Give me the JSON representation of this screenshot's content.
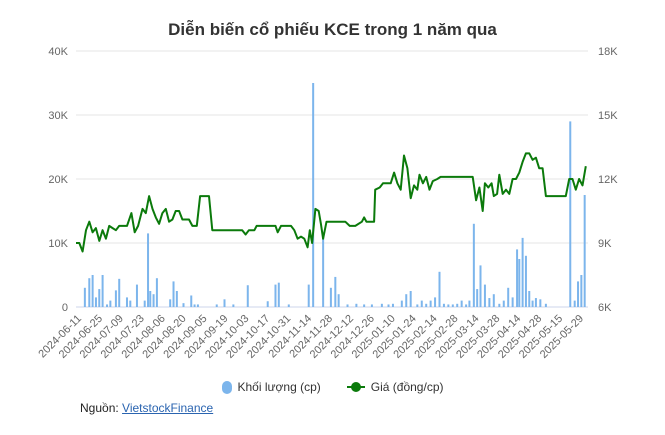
{
  "chart_data": {
    "type": "bar+line",
    "title": "Diễn biến cổ phiếu KCE trong 1 năm qua",
    "y_left_ticks": [
      "0",
      "10K",
      "20K",
      "30K",
      "40K"
    ],
    "y_left_range": [
      0,
      40000
    ],
    "y_right_ticks": [
      "6K",
      "9K",
      "12K",
      "15K",
      "18K"
    ],
    "y_right_range": [
      6000,
      18000
    ],
    "x_tick_labels": [
      "2024-06-11",
      "2024-06-25",
      "2024-07-09",
      "2024-07-23",
      "2024-08-06",
      "2024-08-20",
      "2024-09-05",
      "2024-09-19",
      "2024-10-03",
      "2024-10-17",
      "2024-10-31",
      "2024-11-14",
      "2024-11-28",
      "2024-12-12",
      "2024-12-26",
      "2025-01-10",
      "2025-01-24",
      "2025-02-14",
      "2025-02-28",
      "2025-03-14",
      "2025-03-28",
      "2025-04-14",
      "2025-04-28",
      "2025-05-15",
      "2025-05-29"
    ],
    "grid": true,
    "legend_position": "bottom",
    "colors": {
      "volume": "#7cb5ec",
      "price": "#0b7a0b",
      "grid": "#e6e6e6",
      "axis": "#ccd6eb"
    },
    "series": [
      {
        "name": "Khối lượng (cp)",
        "axis": "left",
        "kind": "bar",
        "points": [
          {
            "x": 0.8,
            "y": 3000
          },
          {
            "x": 1.2,
            "y": 4500
          },
          {
            "x": 1.5,
            "y": 5000
          },
          {
            "x": 1.8,
            "y": 1500
          },
          {
            "x": 2.1,
            "y": 2800
          },
          {
            "x": 2.4,
            "y": 5000
          },
          {
            "x": 2.8,
            "y": 400
          },
          {
            "x": 3.1,
            "y": 1000
          },
          {
            "x": 3.6,
            "y": 2600
          },
          {
            "x": 3.9,
            "y": 4400
          },
          {
            "x": 4.6,
            "y": 1500
          },
          {
            "x": 4.9,
            "y": 1000
          },
          {
            "x": 5.5,
            "y": 3500
          },
          {
            "x": 6.2,
            "y": 1000
          },
          {
            "x": 6.5,
            "y": 11500
          },
          {
            "x": 6.7,
            "y": 2500
          },
          {
            "x": 7.0,
            "y": 2000
          },
          {
            "x": 7.3,
            "y": 4500
          },
          {
            "x": 8.5,
            "y": 1200
          },
          {
            "x": 8.8,
            "y": 4000
          },
          {
            "x": 9.1,
            "y": 2500
          },
          {
            "x": 9.7,
            "y": 600
          },
          {
            "x": 10.4,
            "y": 1800
          },
          {
            "x": 10.7,
            "y": 400
          },
          {
            "x": 11.0,
            "y": 400
          },
          {
            "x": 12.7,
            "y": 400
          },
          {
            "x": 13.4,
            "y": 1200
          },
          {
            "x": 14.2,
            "y": 400
          },
          {
            "x": 15.5,
            "y": 3400
          },
          {
            "x": 17.3,
            "y": 900
          },
          {
            "x": 18.0,
            "y": 3500
          },
          {
            "x": 18.3,
            "y": 3800
          },
          {
            "x": 19.2,
            "y": 400
          },
          {
            "x": 21.0,
            "y": 3500
          },
          {
            "x": 21.4,
            "y": 35000
          },
          {
            "x": 22.3,
            "y": 11000
          },
          {
            "x": 23.0,
            "y": 3000
          },
          {
            "x": 23.4,
            "y": 4700
          },
          {
            "x": 23.7,
            "y": 2000
          },
          {
            "x": 24.5,
            "y": 400
          },
          {
            "x": 25.3,
            "y": 500
          },
          {
            "x": 26.0,
            "y": 400
          },
          {
            "x": 26.7,
            "y": 400
          },
          {
            "x": 27.6,
            "y": 500
          },
          {
            "x": 28.2,
            "y": 400
          },
          {
            "x": 28.6,
            "y": 500
          },
          {
            "x": 29.4,
            "y": 1000
          },
          {
            "x": 29.8,
            "y": 2000
          },
          {
            "x": 30.2,
            "y": 2500
          },
          {
            "x": 30.8,
            "y": 400
          },
          {
            "x": 31.2,
            "y": 1000
          },
          {
            "x": 31.6,
            "y": 500
          },
          {
            "x": 32.0,
            "y": 1000
          },
          {
            "x": 32.4,
            "y": 1500
          },
          {
            "x": 32.8,
            "y": 5500
          },
          {
            "x": 33.2,
            "y": 500
          },
          {
            "x": 33.6,
            "y": 400
          },
          {
            "x": 34.0,
            "y": 400
          },
          {
            "x": 34.4,
            "y": 500
          },
          {
            "x": 34.8,
            "y": 1000
          },
          {
            "x": 35.2,
            "y": 400
          },
          {
            "x": 35.5,
            "y": 1000
          },
          {
            "x": 35.9,
            "y": 13000
          },
          {
            "x": 36.2,
            "y": 2800
          },
          {
            "x": 36.5,
            "y": 6500
          },
          {
            "x": 36.9,
            "y": 3500
          },
          {
            "x": 37.3,
            "y": 1400
          },
          {
            "x": 37.7,
            "y": 2000
          },
          {
            "x": 38.2,
            "y": 500
          },
          {
            "x": 38.6,
            "y": 1000
          },
          {
            "x": 39.0,
            "y": 3000
          },
          {
            "x": 39.4,
            "y": 1500
          },
          {
            "x": 39.8,
            "y": 9000
          },
          {
            "x": 40.0,
            "y": 7500
          },
          {
            "x": 40.3,
            "y": 10800
          },
          {
            "x": 40.6,
            "y": 8000
          },
          {
            "x": 40.9,
            "y": 2500
          },
          {
            "x": 41.2,
            "y": 1000
          },
          {
            "x": 41.5,
            "y": 1400
          },
          {
            "x": 41.9,
            "y": 1200
          },
          {
            "x": 42.4,
            "y": 500
          },
          {
            "x": 44.6,
            "y": 29000
          },
          {
            "x": 45.0,
            "y": 1000
          },
          {
            "x": 45.3,
            "y": 4000
          },
          {
            "x": 45.6,
            "y": 5000
          },
          {
            "x": 45.9,
            "y": 17500
          }
        ]
      },
      {
        "name": "Giá (đồng/cp)",
        "axis": "right",
        "kind": "line",
        "points": [
          {
            "x": 0.0,
            "y": 9000
          },
          {
            "x": 0.3,
            "y": 9000
          },
          {
            "x": 0.6,
            "y": 8600
          },
          {
            "x": 0.9,
            "y": 9600
          },
          {
            "x": 1.2,
            "y": 10000
          },
          {
            "x": 1.5,
            "y": 9500
          },
          {
            "x": 1.8,
            "y": 9700
          },
          {
            "x": 2.1,
            "y": 9100
          },
          {
            "x": 2.4,
            "y": 9600
          },
          {
            "x": 2.7,
            "y": 9200
          },
          {
            "x": 3.0,
            "y": 9800
          },
          {
            "x": 3.3,
            "y": 9700
          },
          {
            "x": 3.6,
            "y": 9600
          },
          {
            "x": 3.9,
            "y": 9800
          },
          {
            "x": 4.2,
            "y": 9800
          },
          {
            "x": 4.6,
            "y": 9800
          },
          {
            "x": 5.0,
            "y": 10400
          },
          {
            "x": 5.3,
            "y": 9500
          },
          {
            "x": 5.6,
            "y": 9800
          },
          {
            "x": 6.0,
            "y": 10600
          },
          {
            "x": 6.3,
            "y": 10400
          },
          {
            "x": 6.6,
            "y": 11200
          },
          {
            "x": 6.9,
            "y": 10600
          },
          {
            "x": 7.2,
            "y": 10200
          },
          {
            "x": 7.5,
            "y": 9900
          },
          {
            "x": 7.8,
            "y": 10400
          },
          {
            "x": 8.1,
            "y": 10600
          },
          {
            "x": 8.4,
            "y": 10000
          },
          {
            "x": 8.7,
            "y": 10100
          },
          {
            "x": 9.0,
            "y": 10500
          },
          {
            "x": 9.3,
            "y": 10500
          },
          {
            "x": 9.6,
            "y": 10100
          },
          {
            "x": 10.2,
            "y": 10100
          },
          {
            "x": 10.5,
            "y": 9800
          },
          {
            "x": 10.9,
            "y": 9800
          },
          {
            "x": 11.2,
            "y": 11200
          },
          {
            "x": 11.6,
            "y": 11200
          },
          {
            "x": 12.0,
            "y": 11200
          },
          {
            "x": 12.3,
            "y": 9600
          },
          {
            "x": 13.5,
            "y": 9600
          },
          {
            "x": 14.0,
            "y": 9600
          },
          {
            "x": 15.0,
            "y": 9600
          },
          {
            "x": 15.3,
            "y": 9400
          },
          {
            "x": 15.6,
            "y": 9600
          },
          {
            "x": 16.1,
            "y": 9600
          },
          {
            "x": 16.3,
            "y": 9800
          },
          {
            "x": 17.0,
            "y": 9800
          },
          {
            "x": 18.0,
            "y": 9800
          },
          {
            "x": 18.2,
            "y": 9500
          },
          {
            "x": 18.5,
            "y": 9800
          },
          {
            "x": 19.4,
            "y": 9800
          },
          {
            "x": 19.7,
            "y": 9600
          },
          {
            "x": 20.0,
            "y": 9200
          },
          {
            "x": 20.3,
            "y": 9300
          },
          {
            "x": 20.6,
            "y": 9200
          },
          {
            "x": 20.9,
            "y": 8800
          },
          {
            "x": 21.1,
            "y": 9600
          },
          {
            "x": 21.3,
            "y": 9000
          },
          {
            "x": 21.6,
            "y": 10600
          },
          {
            "x": 21.9,
            "y": 10500
          },
          {
            "x": 22.1,
            "y": 9900
          },
          {
            "x": 22.3,
            "y": 9200
          },
          {
            "x": 22.6,
            "y": 10000
          },
          {
            "x": 23.2,
            "y": 10000
          },
          {
            "x": 23.8,
            "y": 10000
          },
          {
            "x": 24.3,
            "y": 10000
          },
          {
            "x": 24.7,
            "y": 9800
          },
          {
            "x": 25.2,
            "y": 9800
          },
          {
            "x": 25.8,
            "y": 10000
          },
          {
            "x": 26.0,
            "y": 10200
          },
          {
            "x": 26.2,
            "y": 10000
          },
          {
            "x": 26.6,
            "y": 10000
          },
          {
            "x": 26.9,
            "y": 10000
          },
          {
            "x": 27.0,
            "y": 11500
          },
          {
            "x": 27.4,
            "y": 11600
          },
          {
            "x": 27.7,
            "y": 11800
          },
          {
            "x": 28.0,
            "y": 11800
          },
          {
            "x": 28.4,
            "y": 11800
          },
          {
            "x": 28.7,
            "y": 12300
          },
          {
            "x": 29.0,
            "y": 11800
          },
          {
            "x": 29.3,
            "y": 11500
          },
          {
            "x": 29.6,
            "y": 13100
          },
          {
            "x": 29.9,
            "y": 12500
          },
          {
            "x": 30.2,
            "y": 11100
          },
          {
            "x": 30.5,
            "y": 11700
          },
          {
            "x": 30.8,
            "y": 11500
          },
          {
            "x": 31.0,
            "y": 12200
          },
          {
            "x": 31.3,
            "y": 11800
          },
          {
            "x": 31.6,
            "y": 12100
          },
          {
            "x": 31.9,
            "y": 11500
          },
          {
            "x": 32.2,
            "y": 11900
          },
          {
            "x": 32.6,
            "y": 12000
          },
          {
            "x": 32.9,
            "y": 12100
          },
          {
            "x": 34.0,
            "y": 12100
          },
          {
            "x": 35.0,
            "y": 12100
          },
          {
            "x": 35.8,
            "y": 12100
          },
          {
            "x": 36.1,
            "y": 11000
          },
          {
            "x": 36.4,
            "y": 11600
          },
          {
            "x": 36.7,
            "y": 10500
          },
          {
            "x": 36.9,
            "y": 11800
          },
          {
            "x": 37.2,
            "y": 11600
          },
          {
            "x": 37.5,
            "y": 11800
          },
          {
            "x": 37.7,
            "y": 11200
          },
          {
            "x": 38.0,
            "y": 11300
          },
          {
            "x": 38.2,
            "y": 12200
          },
          {
            "x": 38.5,
            "y": 11300
          },
          {
            "x": 38.8,
            "y": 11500
          },
          {
            "x": 39.1,
            "y": 11300
          },
          {
            "x": 39.4,
            "y": 12000
          },
          {
            "x": 39.7,
            "y": 12000
          },
          {
            "x": 40.0,
            "y": 12300
          },
          {
            "x": 40.3,
            "y": 12800
          },
          {
            "x": 40.6,
            "y": 13200
          },
          {
            "x": 40.9,
            "y": 13200
          },
          {
            "x": 41.2,
            "y": 12900
          },
          {
            "x": 41.5,
            "y": 13000
          },
          {
            "x": 41.8,
            "y": 12500
          },
          {
            "x": 42.1,
            "y": 12500
          },
          {
            "x": 42.4,
            "y": 11200
          },
          {
            "x": 43.0,
            "y": 11200
          },
          {
            "x": 43.6,
            "y": 11200
          },
          {
            "x": 44.2,
            "y": 11200
          },
          {
            "x": 44.5,
            "y": 12000
          },
          {
            "x": 44.8,
            "y": 12000
          },
          {
            "x": 45.1,
            "y": 11500
          },
          {
            "x": 45.4,
            "y": 12000
          },
          {
            "x": 45.7,
            "y": 11700
          },
          {
            "x": 46.0,
            "y": 12600
          }
        ]
      }
    ]
  },
  "source": {
    "label": "Nguồn: ",
    "link_text": "VietstockFinance"
  }
}
